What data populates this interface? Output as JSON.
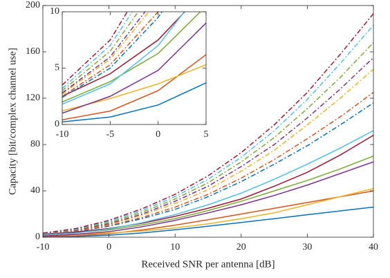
{
  "chart_data": [
    {
      "type": "line",
      "xlabel": "Received SNR per antenna [dB]",
      "ylabel": "Capacity [bit/complex channel use]",
      "x": [
        -10,
        -5,
        0,
        5,
        10,
        15,
        20,
        25,
        30,
        35,
        40
      ],
      "xlim": [
        -10,
        40
      ],
      "xticks": [
        -10,
        0,
        10,
        20,
        30,
        40
      ],
      "ylim": [
        0,
        200
      ],
      "yticks": [
        0,
        40,
        80,
        120,
        160,
        200
      ],
      "series": [
        {
          "color": "#0072BD",
          "style": "solid",
          "values": [
            0.23,
            0.66,
            1.73,
            3.69,
            6.4,
            9.5,
            12.7,
            16.0,
            19.4,
            22.7,
            26.0
          ]
        },
        {
          "color": "#D95319",
          "style": "solid",
          "values": [
            0.41,
            1.19,
            3,
            6.2,
            10.4,
            15.1,
            20.0,
            24.9,
            29.9,
            34.9,
            39.9
          ]
        },
        {
          "color": "#EDB120",
          "style": "solid",
          "values": [
            1.2,
            2.3,
            3.6,
            5.3,
            8,
            11.5,
            16,
            21,
            28,
            35,
            42
          ]
        },
        {
          "color": "#7E2F8E",
          "style": "solid",
          "values": [
            1.0,
            2.5,
            4.8,
            9.0,
            14.5,
            21,
            28,
            36,
            45,
            55,
            65
          ]
        },
        {
          "color": "#77AC30",
          "style": "solid",
          "values": [
            2.0,
            3.8,
            6.3,
            10.5,
            16,
            23,
            31,
            40,
            49,
            59,
            70
          ]
        },
        {
          "color": "#A2142F",
          "style": "solid",
          "values": [
            2.5,
            4.5,
            7.5,
            12,
            18,
            25,
            33,
            44,
            56,
            71,
            88
          ]
        },
        {
          "color": "#4DBEEE",
          "style": "solid",
          "values": [
            1.8,
            3.6,
            7,
            12.5,
            19.5,
            28,
            38,
            50,
            63,
            77,
            92
          ]
        },
        {
          "color": "#0072BD",
          "style": "dashdot",
          "values": [
            2.4,
            5.0,
            9.5,
            16,
            24,
            35,
            48,
            63,
            79,
            97,
            116
          ]
        },
        {
          "color": "#D95319",
          "style": "dashdot",
          "values": [
            2.5,
            5.3,
            10.0,
            17,
            26,
            37,
            51,
            67,
            85,
            104,
            125
          ]
        },
        {
          "color": "#EDB120",
          "style": "dashdot",
          "values": [
            2.7,
            5.8,
            11,
            19,
            29,
            41,
            57,
            75,
            97,
            120,
            145
          ]
        },
        {
          "color": "#7E2F8E",
          "style": "dashdot",
          "values": [
            2.8,
            6.0,
            11.5,
            20,
            31,
            44,
            61,
            80,
            103,
            128,
            155
          ]
        },
        {
          "color": "#77AC30",
          "style": "dashdot",
          "values": [
            3.0,
            6.5,
            12.5,
            21.5,
            33,
            47,
            65,
            86,
            111,
            138,
            168
          ]
        },
        {
          "color": "#4DBEEE",
          "style": "dashdot",
          "values": [
            3.2,
            7.0,
            13.5,
            23,
            35,
            50,
            69,
            92,
            119,
            150,
            183
          ]
        },
        {
          "color": "#A2142F",
          "style": "dashdot",
          "values": [
            3.5,
            7.5,
            14.5,
            24.5,
            37,
            53,
            73,
            97,
            125,
            158,
            193
          ]
        }
      ]
    },
    {
      "type": "inset",
      "xlim": [
        -10,
        5
      ],
      "xticks": [
        -10,
        -5,
        0,
        5
      ],
      "ylim": [
        0,
        10
      ],
      "yticks": [
        0,
        5,
        10
      ]
    }
  ]
}
